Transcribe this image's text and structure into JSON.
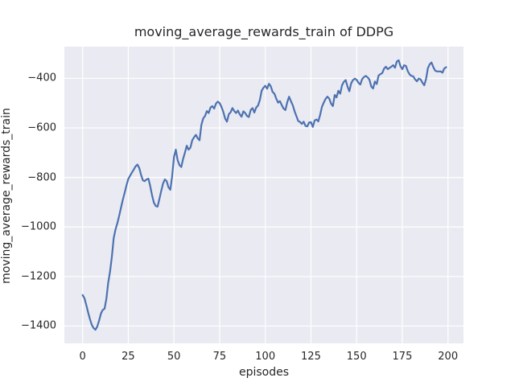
{
  "chart_data": {
    "type": "line",
    "title": "moving_average_rewards_train of DDPG",
    "xlabel": "episodes",
    "ylabel": "moving_average_rewards_train",
    "grid": true,
    "legend_position": "none",
    "xlim": [
      -10,
      208.5
    ],
    "ylim": [
      -1470,
      -272
    ],
    "xticks": {
      "values": [
        0,
        25,
        50,
        75,
        100,
        125,
        150,
        175,
        200
      ],
      "labels": [
        "0",
        "25",
        "50",
        "75",
        "100",
        "125",
        "150",
        "175",
        "200"
      ]
    },
    "yticks": {
      "values": [
        -400,
        -600,
        -800,
        -1000,
        -1200,
        -1400
      ],
      "labels": [
        "−400",
        "−600",
        "−800",
        "−1000",
        "−1200",
        "−1400"
      ]
    },
    "style": {
      "figure_bg": "#ffffff",
      "axes_bg": "#eaeaf2",
      "grid_color": "#ffffff",
      "line_color": "#4c72b0",
      "text_color": "#262626"
    },
    "series": [
      {
        "name": "moving_average_rewards_train",
        "x_start": 0,
        "x_step": 1,
        "values": [
          -1275,
          -1288,
          -1315,
          -1345,
          -1372,
          -1395,
          -1408,
          -1415,
          -1402,
          -1378,
          -1350,
          -1335,
          -1330,
          -1290,
          -1225,
          -1180,
          -1120,
          -1045,
          -1010,
          -985,
          -955,
          -922,
          -890,
          -862,
          -832,
          -806,
          -793,
          -780,
          -768,
          -755,
          -748,
          -762,
          -790,
          -812,
          -815,
          -808,
          -805,
          -835,
          -872,
          -902,
          -915,
          -918,
          -888,
          -855,
          -825,
          -808,
          -815,
          -840,
          -850,
          -795,
          -718,
          -688,
          -730,
          -750,
          -758,
          -725,
          -700,
          -672,
          -688,
          -680,
          -650,
          -638,
          -628,
          -642,
          -650,
          -588,
          -562,
          -552,
          -532,
          -540,
          -518,
          -512,
          -522,
          -502,
          -494,
          -500,
          -515,
          -535,
          -562,
          -575,
          -545,
          -537,
          -520,
          -532,
          -540,
          -530,
          -545,
          -555,
          -533,
          -540,
          -552,
          -556,
          -528,
          -520,
          -538,
          -518,
          -510,
          -488,
          -450,
          -438,
          -430,
          -442,
          -422,
          -432,
          -455,
          -462,
          -482,
          -498,
          -492,
          -508,
          -522,
          -528,
          -497,
          -474,
          -492,
          -508,
          -532,
          -552,
          -572,
          -576,
          -584,
          -575,
          -592,
          -594,
          -578,
          -577,
          -596,
          -570,
          -566,
          -574,
          -548,
          -515,
          -498,
          -483,
          -474,
          -482,
          -502,
          -512,
          -467,
          -477,
          -450,
          -462,
          -428,
          -414,
          -407,
          -433,
          -452,
          -420,
          -407,
          -401,
          -406,
          -418,
          -425,
          -403,
          -395,
          -390,
          -396,
          -405,
          -433,
          -441,
          -413,
          -423,
          -389,
          -383,
          -379,
          -361,
          -353,
          -363,
          -358,
          -353,
          -347,
          -357,
          -332,
          -327,
          -351,
          -363,
          -347,
          -350,
          -371,
          -384,
          -390,
          -392,
          -404,
          -412,
          -401,
          -404,
          -417,
          -428,
          -403,
          -359,
          -343,
          -336,
          -355,
          -369,
          -372,
          -372,
          -372,
          -377,
          -360,
          -355
        ]
      }
    ]
  }
}
